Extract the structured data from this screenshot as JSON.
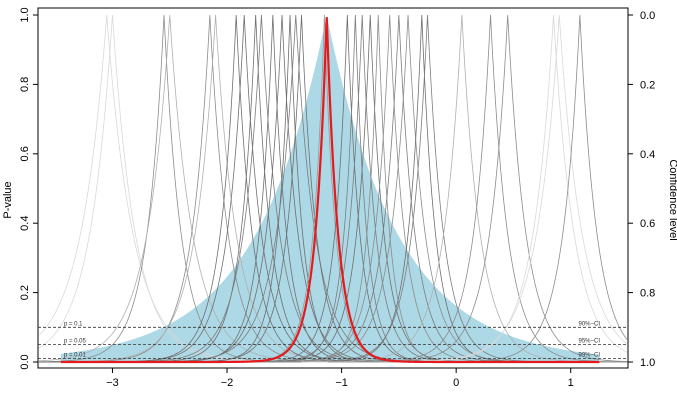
{
  "chart_data": {
    "type": "line",
    "title": "",
    "xlabel": "",
    "ylabel": "P-value",
    "ylabel_right": "Confidence level",
    "xlim": [
      -3.65,
      1.5
    ],
    "ylim": [
      0,
      1.0
    ],
    "x_ticks": [
      -3,
      -2,
      -1,
      0,
      1
    ],
    "y_ticks": [
      0.0,
      0.2,
      0.4,
      0.6,
      0.8,
      1.0
    ],
    "y_ticks_right": [
      "1.0",
      "0.8",
      "0.6",
      "0.4",
      "0.2",
      "0.0"
    ],
    "y_tick_labels_left": [
      "0.0",
      "0.2",
      "0.4",
      "0.6",
      "0.8",
      "1.0"
    ],
    "x_tick_labels": [
      "−3",
      "−2",
      "−1",
      "0",
      "1"
    ],
    "grid": false,
    "reference_lines": [
      {
        "p": 0.1,
        "left_label": "p = 0.1",
        "right_label": "90%−CI"
      },
      {
        "p": 0.05,
        "left_label": "p = 0.05",
        "right_label": "95%−CI"
      },
      {
        "p": 0.01,
        "left_label": "p = 0.01",
        "right_label": "99%−CI"
      }
    ],
    "pooled_distribution": {
      "name": "",
      "center": -1.13,
      "x_range": [
        -3.45,
        1.25
      ],
      "color": "#add8e6"
    },
    "pooled_estimate": {
      "name": "",
      "center": -1.13,
      "width": 0.1,
      "x_range": [
        -3.45,
        1.25
      ],
      "color": "#e41a1c"
    },
    "study_curves": [
      {
        "center": -3.05,
        "width": 0.23,
        "color": "#d9d9d9"
      },
      {
        "center": -3.0,
        "width": 0.2,
        "color": "#d9d9d9"
      },
      {
        "center": -2.55,
        "width": 0.15,
        "color": "#8c8c8c"
      },
      {
        "center": -2.5,
        "width": 0.2,
        "color": "#b0b0b0"
      },
      {
        "center": -2.15,
        "width": 0.16,
        "color": "#8c8c8c"
      },
      {
        "center": -2.1,
        "width": 0.18,
        "color": "#b0b0b0"
      },
      {
        "center": -1.92,
        "width": 0.14,
        "color": "#6f6f6f"
      },
      {
        "center": -1.85,
        "width": 0.15,
        "color": "#6f6f6f"
      },
      {
        "center": -1.75,
        "width": 0.13,
        "color": "#6f6f6f"
      },
      {
        "center": -1.7,
        "width": 0.16,
        "color": "#7d7d7d"
      },
      {
        "center": -1.6,
        "width": 0.12,
        "color": "#6f6f6f"
      },
      {
        "center": -1.52,
        "width": 0.14,
        "color": "#6f6f6f"
      },
      {
        "center": -1.45,
        "width": 0.11,
        "color": "#6f6f6f"
      },
      {
        "center": -1.4,
        "width": 0.17,
        "color": "#7d7d7d"
      },
      {
        "center": -1.35,
        "width": 0.13,
        "color": "#6f6f6f"
      },
      {
        "center": -1.15,
        "width": 0.1,
        "color": "#999999"
      },
      {
        "center": -0.95,
        "width": 0.11,
        "color": "#6f6f6f"
      },
      {
        "center": -0.88,
        "width": 0.1,
        "color": "#7d7d7d"
      },
      {
        "center": -0.82,
        "width": 0.12,
        "color": "#7d7d7d"
      },
      {
        "center": -0.75,
        "width": 0.12,
        "color": "#6f6f6f"
      },
      {
        "center": -0.68,
        "width": 0.1,
        "color": "#8c8c8c"
      },
      {
        "center": -0.58,
        "width": 0.13,
        "color": "#8c8c8c"
      },
      {
        "center": -0.5,
        "width": 0.14,
        "color": "#7d7d7d"
      },
      {
        "center": -0.42,
        "width": 0.15,
        "color": "#8c8c8c"
      },
      {
        "center": -0.3,
        "width": 0.12,
        "color": "#6f6f6f"
      },
      {
        "center": -0.25,
        "width": 0.14,
        "color": "#7d7d7d"
      },
      {
        "center": 0.05,
        "width": 0.16,
        "color": "#b0b0b0"
      },
      {
        "center": 0.3,
        "width": 0.15,
        "color": "#8c8c8c"
      },
      {
        "center": 0.45,
        "width": 0.16,
        "color": "#8c8c8c"
      },
      {
        "center": 0.85,
        "width": 0.18,
        "color": "#d9d9d9"
      },
      {
        "center": 0.9,
        "width": 0.2,
        "color": "#d9d9d9"
      },
      {
        "center": 1.08,
        "width": 0.15,
        "color": "#8c8c8c"
      }
    ]
  }
}
